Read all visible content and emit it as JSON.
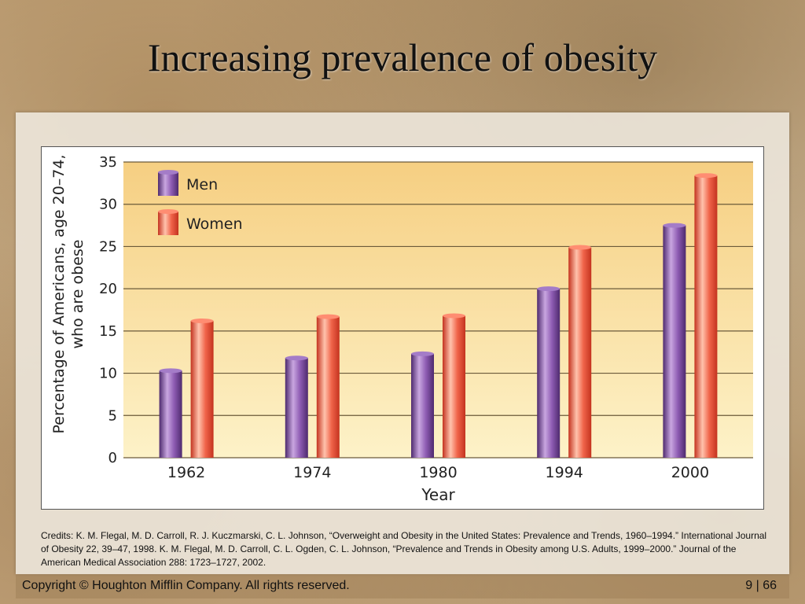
{
  "slide": {
    "title": "Increasing prevalence of obesity",
    "credits": "Credits: K. M. Flegal, M. D. Carroll, R. J. Kuczmarski, C. L. Johnson, “Overweight and Obesity in the United States: Prevalence and Trends, 1960–1994.” International Journal of Obesity 22, 39–47, 1998. K. M. Flegal, M. D. Carroll, C. L. Ogden, C. L. Johnson, “Prevalence and Trends in Obesity among U.S. Adults, 1999–2000.” Journal of the American Medical Association 288: 1723–1727, 2002.",
    "copyright": "Copyright © Houghton Mifflin Company. All rights reserved.",
    "page": "9 | 66"
  },
  "chart_data": {
    "type": "bar",
    "title": "",
    "xlabel": "Year",
    "ylabel": "Percentage of Americans, age 20–74, who are obese",
    "ylabel_lines": [
      "Percentage of Americans, age 20–74,",
      "who are obese"
    ],
    "categories": [
      "1962",
      "1974",
      "1980",
      "1994",
      "2000"
    ],
    "series": [
      {
        "name": "Men",
        "values": [
          10.3,
          11.8,
          12.3,
          20.0,
          27.5
        ],
        "color": "#7b4d9e"
      },
      {
        "name": "Women",
        "values": [
          16.2,
          16.7,
          16.8,
          24.9,
          33.4
        ],
        "color": "#e8523a"
      }
    ],
    "yticks": [
      "0",
      "5",
      "10",
      "15",
      "20",
      "25",
      "30",
      "35"
    ],
    "ylim": [
      0,
      35
    ],
    "grid": true,
    "legend": "top-left"
  }
}
